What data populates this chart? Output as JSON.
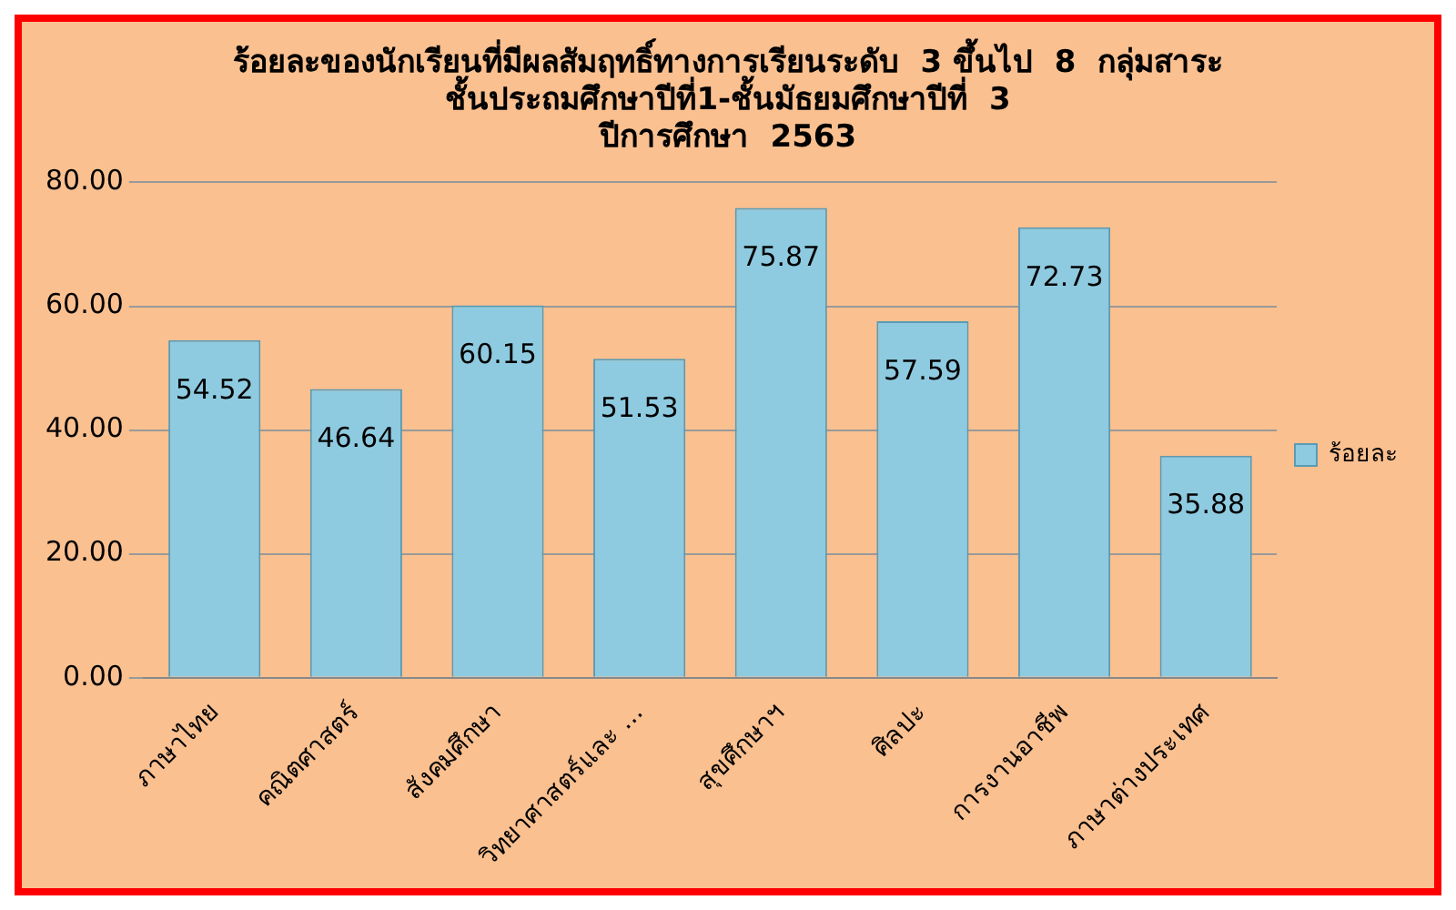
{
  "chart_data": {
    "type": "bar",
    "title": "ร้อยละของนักเรียนที่มีผลสัมฤทธิ์ทางการเรียนระดับ  3 ขึ้นไป  8  กลุ่มสาระ\nชั้นประถมศึกษาปีที่1-ชั้นมัธยมศึกษาปีที่  3\nปีการศึกษา  2563",
    "categories": [
      "ภาษาไทย",
      "คณิตศาสตร์",
      "สังคมศึกษา",
      "วิทยาศาสตร์และ ...",
      "สุขศึกษาฯ",
      "ศิลปะ",
      "การงานอาชีพ",
      "ภาษาต่างประเทศ"
    ],
    "series": [
      {
        "name": "ร้อยละ",
        "color": "#8fcbe0",
        "values": [
          54.52,
          46.64,
          60.15,
          51.53,
          75.87,
          57.59,
          72.73,
          35.88
        ]
      }
    ],
    "ylim": [
      0,
      80
    ],
    "yticks": [
      {
        "value": 0,
        "label": "0.00"
      },
      {
        "value": 20,
        "label": "20.00"
      },
      {
        "value": 40,
        "label": "40.00"
      },
      {
        "value": 60,
        "label": "60.00"
      },
      {
        "value": 80,
        "label": "80.00"
      }
    ],
    "grid": "y",
    "legend": "right",
    "data_labels": true
  }
}
